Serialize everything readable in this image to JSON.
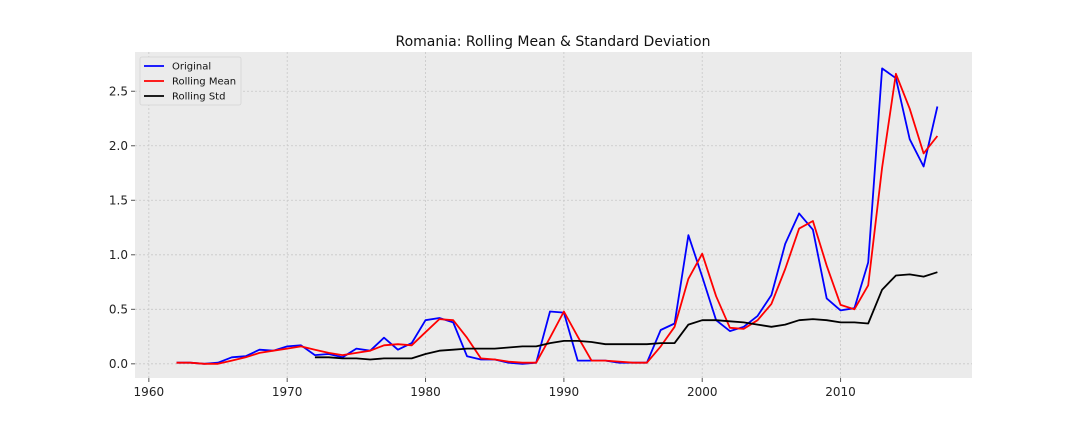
{
  "chart_data": {
    "type": "line",
    "title": "Romania: Rolling Mean & Standard Deviation",
    "xlabel": "",
    "ylabel": "",
    "xlim": [
      1959,
      2019.5
    ],
    "ylim": [
      -0.13,
      2.86
    ],
    "x_ticks": [
      1960,
      1970,
      1980,
      1990,
      2000,
      2010
    ],
    "y_ticks": [
      "0.0",
      "0.5",
      "1.0",
      "1.5",
      "2.0",
      "2.5"
    ],
    "grid": true,
    "legend_position": "top-left",
    "colors": {
      "background": "#ebebeb",
      "grid": "#c8c8c8"
    },
    "series": [
      {
        "name": "Original",
        "color": "#0000ff",
        "x": [
          1962,
          1963,
          1964,
          1965,
          1966,
          1967,
          1968,
          1969,
          1970,
          1971,
          1972,
          1973,
          1974,
          1975,
          1976,
          1977,
          1978,
          1979,
          1980,
          1981,
          1982,
          1983,
          1984,
          1985,
          1986,
          1987,
          1988,
          1989,
          1990,
          1991,
          1992,
          1993,
          1994,
          1995,
          1996,
          1997,
          1998,
          1999,
          2000,
          2001,
          2002,
          2003,
          2004,
          2005,
          2006,
          2007,
          2008,
          2009,
          2010,
          2011,
          2012,
          2013,
          2014,
          2015,
          2016,
          2017
        ],
        "values": [
          0.01,
          0.01,
          0.0,
          0.01,
          0.06,
          0.07,
          0.13,
          0.12,
          0.16,
          0.17,
          0.08,
          0.09,
          0.06,
          0.14,
          0.12,
          0.24,
          0.13,
          0.19,
          0.4,
          0.42,
          0.38,
          0.07,
          0.04,
          0.04,
          0.01,
          0.0,
          0.01,
          0.48,
          0.47,
          0.03,
          0.03,
          0.03,
          0.01,
          0.01,
          0.01,
          0.31,
          0.37,
          1.18,
          0.8,
          0.4,
          0.3,
          0.34,
          0.44,
          0.63,
          1.1,
          1.38,
          1.23,
          0.6,
          0.49,
          0.51,
          0.93,
          2.71,
          2.62,
          2.06,
          1.81,
          2.36
        ]
      },
      {
        "name": "Rolling Mean",
        "color": "#ff0000",
        "x": [
          1962,
          1963,
          1964,
          1965,
          1966,
          1967,
          1968,
          1969,
          1970,
          1971,
          1972,
          1973,
          1974,
          1975,
          1976,
          1977,
          1978,
          1979,
          1980,
          1981,
          1982,
          1983,
          1984,
          1985,
          1986,
          1987,
          1988,
          1989,
          1990,
          1991,
          1992,
          1993,
          1994,
          1995,
          1996,
          1997,
          1998,
          1999,
          2000,
          2001,
          2002,
          2003,
          2004,
          2005,
          2006,
          2007,
          2008,
          2009,
          2010,
          2011,
          2012,
          2013,
          2014,
          2015,
          2016,
          2017
        ],
        "values": [
          0.01,
          0.01,
          0.0,
          0.0,
          0.03,
          0.06,
          0.1,
          0.12,
          0.14,
          0.16,
          0.13,
          0.1,
          0.08,
          0.1,
          0.12,
          0.17,
          0.18,
          0.17,
          0.29,
          0.41,
          0.4,
          0.24,
          0.05,
          0.04,
          0.02,
          0.01,
          0.01,
          0.24,
          0.48,
          0.25,
          0.03,
          0.03,
          0.02,
          0.01,
          0.01,
          0.16,
          0.34,
          0.78,
          1.01,
          0.62,
          0.33,
          0.32,
          0.4,
          0.55,
          0.87,
          1.24,
          1.31,
          0.9,
          0.54,
          0.5,
          0.72,
          1.8,
          2.66,
          2.34,
          1.93,
          2.09
        ]
      },
      {
        "name": "Rolling Std",
        "color": "#000000",
        "x": [
          1972,
          1973,
          1974,
          1975,
          1976,
          1977,
          1978,
          1979,
          1980,
          1981,
          1982,
          1983,
          1984,
          1985,
          1986,
          1987,
          1988,
          1989,
          1990,
          1991,
          1992,
          1993,
          1994,
          1995,
          1996,
          1997,
          1998,
          1999,
          2000,
          2001,
          2002,
          2003,
          2004,
          2005,
          2006,
          2007,
          2008,
          2009,
          2010,
          2011,
          2012,
          2013,
          2014,
          2015,
          2016,
          2017
        ],
        "values": [
          0.06,
          0.06,
          0.05,
          0.05,
          0.04,
          0.05,
          0.05,
          0.05,
          0.09,
          0.12,
          0.13,
          0.14,
          0.14,
          0.14,
          0.15,
          0.16,
          0.16,
          0.19,
          0.21,
          0.21,
          0.2,
          0.18,
          0.18,
          0.18,
          0.18,
          0.19,
          0.19,
          0.36,
          0.4,
          0.4,
          0.39,
          0.38,
          0.36,
          0.34,
          0.36,
          0.4,
          0.41,
          0.4,
          0.38,
          0.38,
          0.37,
          0.68,
          0.81,
          0.82,
          0.8,
          0.84
        ]
      }
    ]
  }
}
